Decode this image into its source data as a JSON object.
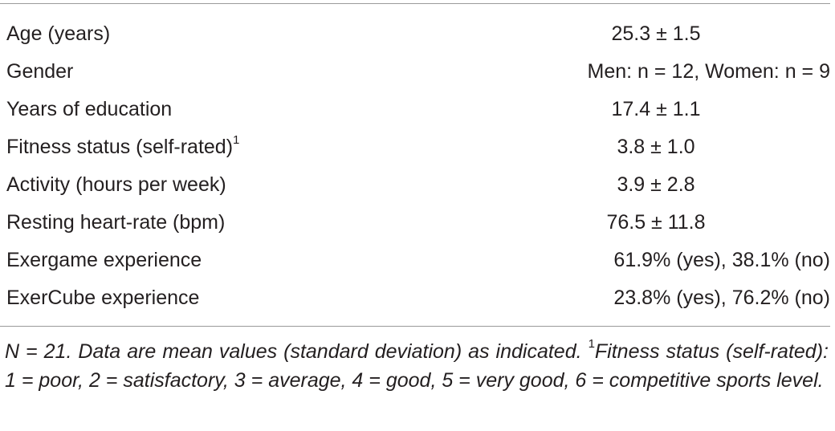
{
  "table": {
    "rows": [
      {
        "label": "Age (years)",
        "sup": "",
        "value": "25.3 ± 1.5"
      },
      {
        "label": "Gender",
        "sup": "",
        "value": "Men: n = 12, Women: n = 9"
      },
      {
        "label": "Years of education",
        "sup": "",
        "value": "17.4 ± 1.1"
      },
      {
        "label": "Fitness status (self-rated)",
        "sup": "1",
        "value": "3.8 ± 1.0"
      },
      {
        "label": "Activity (hours per week)",
        "sup": "",
        "value": "3.9 ± 2.8"
      },
      {
        "label": "Resting heart-rate (bpm)",
        "sup": "",
        "value": "76.5 ± 11.8"
      },
      {
        "label": "Exergame experience",
        "sup": "",
        "value": "61.9% (yes), 38.1% (no)"
      },
      {
        "label": "ExerCube experience",
        "sup": "",
        "value": "23.8% (yes), 76.2% (no)"
      }
    ]
  },
  "footnote": {
    "part1": "N = 21. Data are mean values (standard deviation) as indicated. ",
    "sup": "1",
    "part2": "Fitness status (self-rated): 1 = poor, 2 = satisfactory, 3 = average, 4 = good, 5 = very good, 6 = competitive sports level."
  }
}
